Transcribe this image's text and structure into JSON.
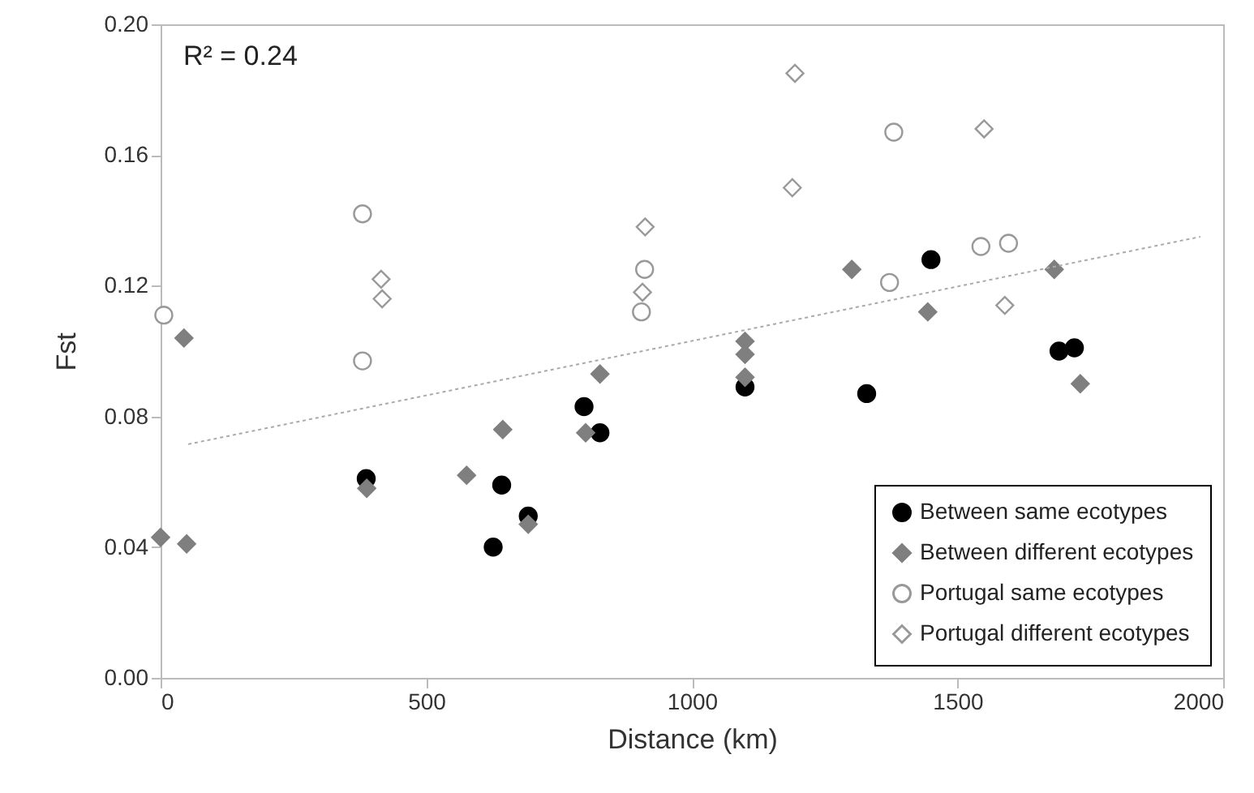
{
  "chart_data": {
    "type": "scatter",
    "xlabel": "Distance (km)",
    "ylabel": "Fst",
    "annotations": [
      "R² = 0.24"
    ],
    "xlim": [
      0,
      2000
    ],
    "xticks": [
      0,
      500,
      1000,
      1500,
      2000
    ],
    "ylim": [
      0,
      0.2
    ],
    "yticks": [
      {
        "value": 0,
        "label": "0.00"
      },
      0.04,
      0.08,
      0.12,
      0.16,
      {
        "value": 0.2,
        "label": "0.20"
      }
    ],
    "grid": false,
    "legend": "bottom right",
    "series": [
      {
        "name": "Between same ecotypes",
        "color": "#000000",
        "marker": "circle",
        "x": [
          387,
          626,
          642,
          692,
          797,
          827,
          1100,
          1329,
          1450,
          1691,
          1720
        ],
        "values": [
          0.061,
          0.04,
          0.059,
          0.0495,
          0.083,
          0.075,
          0.089,
          0.087,
          0.128,
          0.1,
          0.101
        ]
      },
      {
        "name": "Between different ecotypes",
        "color": "#7f7f7f",
        "marker": "diamond",
        "x": [
          0,
          44,
          49,
          388,
          576,
          644,
          692,
          800,
          827,
          1100,
          1100,
          1100,
          1301,
          1444,
          1682,
          1731
        ],
        "values": [
          0.043,
          0.104,
          0.041,
          0.058,
          0.062,
          0.076,
          0.047,
          0.075,
          0.093,
          0.103,
          0.099,
          0.092,
          0.125,
          0.112,
          0.125,
          0.09
        ]
      },
      {
        "name": "Portugal same ecotypes",
        "color": "#999999",
        "marker": "circle",
        "x": [
          6,
          380,
          380,
          905,
          911,
          1372,
          1380,
          1544,
          1596
        ],
        "values": [
          0.111,
          0.142,
          0.097,
          0.112,
          0.125,
          0.121,
          0.167,
          0.132,
          0.133
        ]
      },
      {
        "name": "Portugal different ecotypes",
        "color": "#999999",
        "marker": "diamond",
        "x": [
          415,
          417,
          907,
          912,
          1189,
          1194,
          1550,
          1589
        ],
        "values": [
          0.122,
          0.116,
          0.118,
          0.138,
          0.15,
          0.185,
          0.168,
          0.114
        ]
      },
      {
        "type": "line",
        "color": "#aaaaaa",
        "line_style": "dotted",
        "marker": "none",
        "x": [
          52,
          1957
        ],
        "values": [
          0.0715,
          0.135
        ]
      }
    ]
  }
}
